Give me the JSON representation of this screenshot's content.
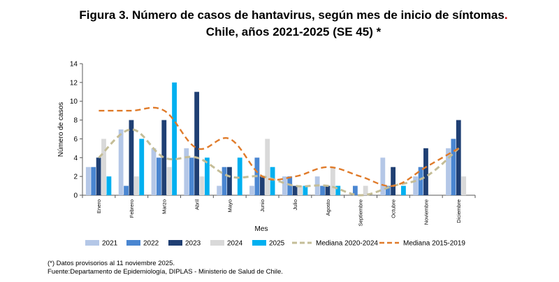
{
  "title_line1": "Figura 3. Número de casos de hantavirus, según mes de inicio de síntomas",
  "title_dot": ".",
  "title_line2": "Chile, años 2021-2025 (SE 45) *",
  "notes": [
    "(*) Datos provisorios al 11 noviembre 2025.",
    "Fuente:Departamento de Epidemiología, DIPLAS - Ministerio de Salud de Chile."
  ],
  "chart_data": {
    "type": "bar",
    "xlabel": "Mes",
    "ylabel": "Número de casos",
    "ylim": [
      0,
      14
    ],
    "yticks": [
      0,
      2,
      4,
      6,
      8,
      10,
      12,
      14
    ],
    "grid": false,
    "legend_position": "bottom",
    "categories": [
      "Enero",
      "Febrero",
      "Marzo",
      "Abril",
      "Mayo",
      "Junio",
      "Julio",
      "Agosto",
      "Septiembre",
      "Octubre",
      "Noviembre",
      "Diciembre"
    ],
    "series": [
      {
        "name": "2021",
        "kind": "bar",
        "color": "#b4c7e7",
        "values": [
          3,
          7,
          5,
          5,
          1,
          1,
          2,
          2,
          0,
          4,
          2,
          5
        ]
      },
      {
        "name": "2022",
        "kind": "bar",
        "color": "#4a86d1",
        "values": [
          3,
          1,
          4,
          4,
          3,
          4,
          2,
          1,
          1,
          1,
          3,
          6
        ]
      },
      {
        "name": "2023",
        "kind": "bar",
        "color": "#1f3f73",
        "values": [
          4,
          8,
          8,
          11,
          3,
          2,
          1,
          1,
          0,
          3,
          5,
          8
        ]
      },
      {
        "name": "2024",
        "kind": "bar",
        "color": "#d9d9d9",
        "values": [
          6,
          2,
          3,
          2,
          0,
          6,
          1,
          3,
          1,
          0,
          0,
          2
        ]
      },
      {
        "name": "2025",
        "kind": "bar",
        "color": "#00b0f0",
        "values": [
          2,
          6,
          12,
          4,
          4,
          3,
          1,
          1,
          0,
          1,
          null,
          null
        ]
      },
      {
        "name": "Mediana 2020-2024",
        "kind": "line",
        "color": "#c4bd97",
        "style": "dashed",
        "values": [
          4,
          7,
          4,
          4,
          2,
          2,
          1,
          1,
          0,
          1,
          2,
          5
        ]
      },
      {
        "name": "Mediana 2015-2019",
        "kind": "line",
        "color": "#e07b2a",
        "style": "dashed",
        "values": [
          9,
          9,
          9,
          5,
          6,
          2,
          2,
          3,
          2,
          1,
          3,
          5
        ]
      }
    ]
  }
}
